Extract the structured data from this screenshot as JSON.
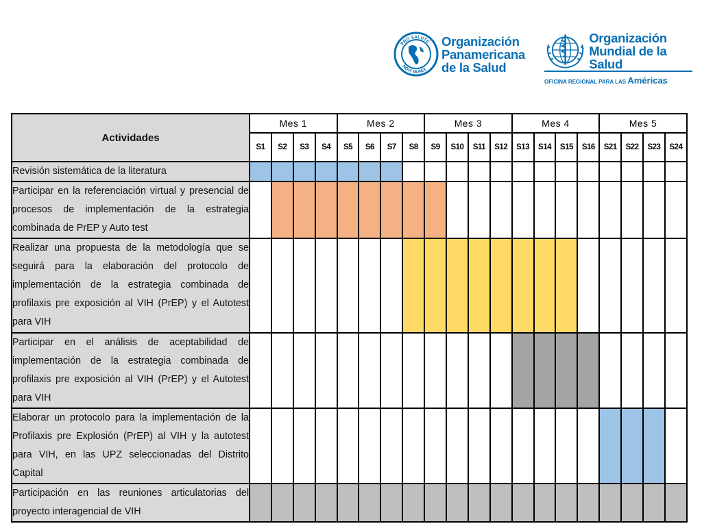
{
  "logos": {
    "paho": {
      "emblem_text_top": "PRO SALUTE",
      "emblem_text_bottom": "NOVI MUNDI",
      "line1": "Organización",
      "line2": "Panamericana",
      "line3": "de la Salud"
    },
    "who": {
      "line1": "Organización",
      "line2": "Mundial de la Salud",
      "sub_prefix": "OFICINA REGIONAL PARA LAS",
      "sub_region": "Américas"
    }
  },
  "table": {
    "activity_header": "Actividades",
    "months": [
      "Mes 1",
      "Mes 2",
      "Mes 3",
      "Mes 4",
      "Mes 5"
    ],
    "weeks": [
      "S1",
      "S2",
      "S3",
      "S4",
      "S5",
      "S6",
      "S7",
      "S8",
      "S9",
      "S10",
      "S11",
      "S12",
      "S13",
      "S14",
      "S15",
      "S16",
      "S21",
      "S22",
      "S23",
      "S24"
    ],
    "rows": [
      {
        "label": "Revisión sistemática de la literatura",
        "color": "#9dc3e6",
        "active_weeks": [
          "S1",
          "S2",
          "S3",
          "S4",
          "S5",
          "S6",
          "S7"
        ]
      },
      {
        "label": "Participar en la referenciación virtual y presencial de procesos de implementación de la estrategia combinada de PrEP y Auto test",
        "color": "#f4b183",
        "active_weeks": [
          "S2",
          "S3",
          "S4",
          "S5",
          "S6",
          "S7",
          "S8",
          "S9"
        ]
      },
      {
        "label": "Realizar una propuesta de la metodología que se seguirá para la elaboración del protocolo de implementación de la estrategia combinada de profilaxis pre exposición al VIH (PrEP) y el Autotest para VIH",
        "color": "#ffd966",
        "active_weeks": [
          "S8",
          "S9",
          "S10",
          "S11",
          "S12",
          "S13",
          "S14",
          "S15"
        ]
      },
      {
        "label": "Participar en el análisis de aceptabilidad de implementación de la estrategia combinada de profilaxis pre exposición al VIH (PrEP) y el Autotest para VIH",
        "color": "#a5a5a5",
        "active_weeks": [
          "S13",
          "S14",
          "S15",
          "S16"
        ]
      },
      {
        "label": "Elaborar un protocolo para la implementación de la Profilaxis pre Explosión (PrEP) al VIH y la autotest para VIH, en las UPZ seleccionadas del Distrito Capital",
        "color": "#9dc3e6",
        "active_weeks": [
          "S21",
          "S22",
          "S23"
        ]
      },
      {
        "label": "Participación en las reuniones articulatorias del proyecto interagencial de VIH",
        "color": "#bfbfbf",
        "active_weeks": [
          "S1",
          "S2",
          "S3",
          "S4",
          "S5",
          "S6",
          "S7",
          "S8",
          "S9",
          "S10",
          "S11",
          "S12",
          "S13",
          "S14",
          "S15",
          "S16",
          "S21",
          "S22",
          "S23",
          "S24"
        ]
      }
    ]
  }
}
